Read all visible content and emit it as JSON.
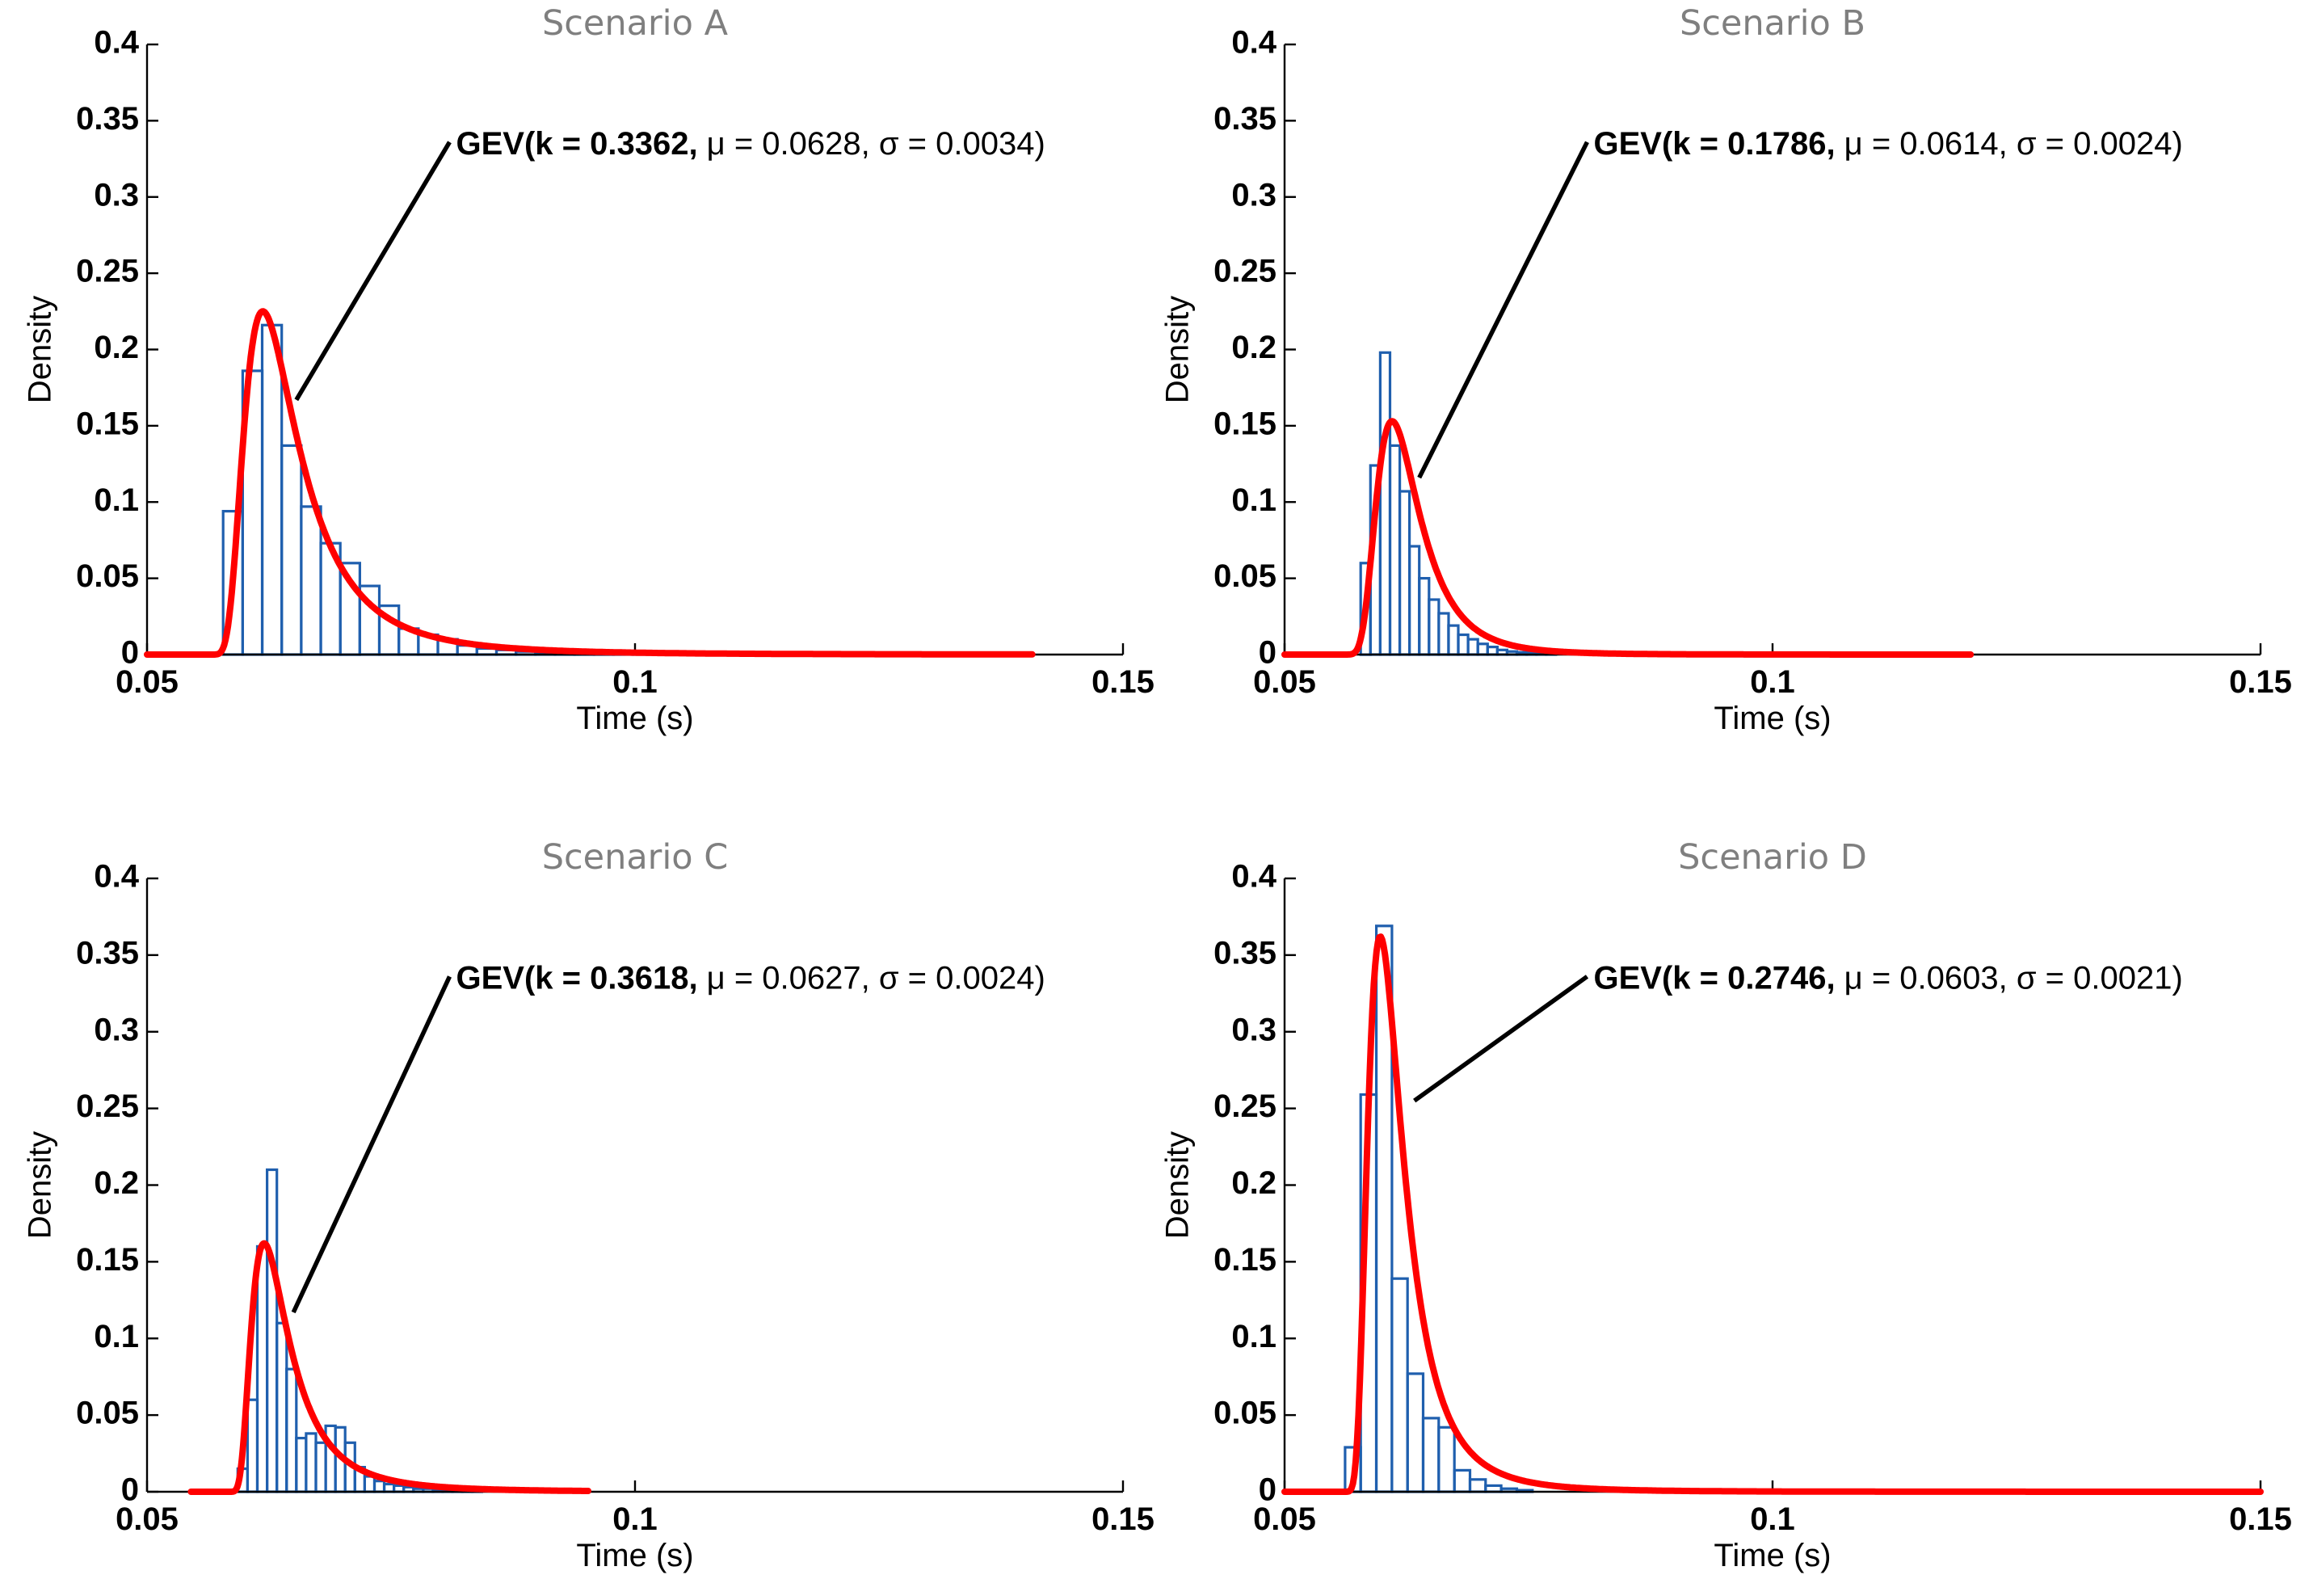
{
  "chart_data": [
    {
      "type": "histogram",
      "title": "Scenario A",
      "xlabel": "Time (s)",
      "ylabel": "Density",
      "xlim": [
        0.05,
        0.15
      ],
      "ylim": [
        0,
        0.4
      ],
      "xticks": [
        "0.05",
        "0.1",
        "0.15"
      ],
      "yticks": [
        "0",
        "0.05",
        "0.1",
        "0.15",
        "0.2",
        "0.25",
        "0.3",
        "0.35",
        "0.4"
      ],
      "histogram": {
        "bin_start": 0.0578,
        "bin_width": 0.002,
        "densities": [
          0.094,
          0.186,
          0.216,
          0.137,
          0.097,
          0.073,
          0.06,
          0.045,
          0.032,
          0.017,
          0.013,
          0.01,
          0.006,
          0.004,
          0.003,
          0.002,
          0.0015,
          0.001,
          0.0008,
          0.0006,
          0.0004,
          0.0003,
          0.0002,
          0.0002,
          0.0001,
          0.0001,
          0.0001,
          0.0001,
          0.0001,
          0.0001
        ],
        "color": "#1f5fae"
      },
      "gev_fit": {
        "label": "GEV(k = 0.3362,",
        "params": " μ = 0.0628, σ = 0.0034)",
        "k": 0.3362,
        "mu": 0.0628,
        "sigma": 0.0034,
        "x_range": [
          0.05,
          0.1407
        ],
        "peak_density": 0.225,
        "color": "#ff0000"
      },
      "annotation": {
        "text_x": 0.081,
        "text_y": 0.336,
        "target_x": 0.0653,
        "target_y": 0.167
      }
    },
    {
      "type": "histogram",
      "title": "Scenario B",
      "xlabel": "Time (s)",
      "ylabel": "Density",
      "xlim": [
        0.05,
        0.15
      ],
      "ylim": [
        0,
        0.4
      ],
      "xticks": [
        "0.05",
        "0.1",
        "0.15"
      ],
      "yticks": [
        "0",
        "0.05",
        "0.1",
        "0.15",
        "0.2",
        "0.25",
        "0.3",
        "0.35",
        "0.4"
      ],
      "histogram": {
        "bin_start": 0.0578,
        "bin_width": 0.001,
        "densities": [
          0.06,
          0.124,
          0.198,
          0.137,
          0.107,
          0.071,
          0.05,
          0.036,
          0.027,
          0.019,
          0.013,
          0.01,
          0.007,
          0.005,
          0.003,
          0.002,
          0.0015,
          0.001,
          0.0008,
          0.0005
        ],
        "color": "#1f5fae"
      },
      "gev_fit": {
        "label": "GEV(k = 0.1786,",
        "params": " μ = 0.0614, σ = 0.0024)",
        "k": 0.1786,
        "mu": 0.0614,
        "sigma": 0.0024,
        "x_range": [
          0.05,
          0.1203
        ],
        "peak_density": 0.153,
        "color": "#ff0000"
      },
      "annotation": {
        "text_x": 0.081,
        "text_y": 0.336,
        "target_x": 0.0638,
        "target_y": 0.116
      }
    },
    {
      "type": "histogram",
      "title": "Scenario C",
      "xlabel": "Time (s)",
      "ylabel": "Density",
      "xlim": [
        0.05,
        0.15
      ],
      "ylim": [
        0,
        0.4
      ],
      "xticks": [
        "0.05",
        "0.1",
        "0.15"
      ],
      "yticks": [
        "0",
        "0.05",
        "0.1",
        "0.15",
        "0.2",
        "0.25",
        "0.3",
        "0.35",
        "0.4"
      ],
      "histogram": {
        "bin_start": 0.0593,
        "bin_width": 0.001,
        "densities": [
          0.015,
          0.06,
          0.16,
          0.21,
          0.11,
          0.08,
          0.035,
          0.038,
          0.032,
          0.043,
          0.042,
          0.032,
          0.016,
          0.01,
          0.007,
          0.005,
          0.004,
          0.003,
          0.002,
          0.002,
          0.001,
          0.001,
          0.001,
          0.0008,
          0.0005
        ],
        "color": "#1f5fae"
      },
      "gev_fit": {
        "label": "GEV(k = 0.3618,",
        "params": " μ = 0.0627, σ = 0.0024)",
        "k": 0.3618,
        "mu": 0.0627,
        "sigma": 0.0024,
        "x_range": [
          0.0545,
          0.0952
        ],
        "peak_density": 0.162,
        "color": "#ff0000"
      },
      "annotation": {
        "text_x": 0.081,
        "text_y": 0.336,
        "target_x": 0.065,
        "target_y": 0.117
      }
    },
    {
      "type": "histogram",
      "title": "Scenario D",
      "xlabel": "Time (s)",
      "ylabel": "Density",
      "xlim": [
        0.05,
        0.15
      ],
      "ylim": [
        0,
        0.4
      ],
      "xticks": [
        "0.05",
        "0.1",
        "0.15"
      ],
      "yticks": [
        "0",
        "0.05",
        "0.1",
        "0.15",
        "0.2",
        "0.25",
        "0.3",
        "0.35",
        "0.4"
      ],
      "histogram": {
        "bin_start": 0.0562,
        "bin_width": 0.0016,
        "densities": [
          0.029,
          0.259,
          0.369,
          0.139,
          0.077,
          0.048,
          0.042,
          0.014,
          0.008,
          0.004,
          0.002,
          0.001
        ],
        "color": "#1f5fae"
      },
      "gev_fit": {
        "label": "GEV(k = 0.2746,",
        "params": " μ = 0.0603, σ = 0.0021)",
        "k": 0.2746,
        "mu": 0.0603,
        "sigma": 0.0021,
        "x_range": [
          0.05,
          0.15
        ],
        "peak_density": 0.362,
        "color": "#ff0000"
      },
      "annotation": {
        "text_x": 0.081,
        "text_y": 0.336,
        "target_x": 0.0633,
        "target_y": 0.255
      }
    }
  ]
}
